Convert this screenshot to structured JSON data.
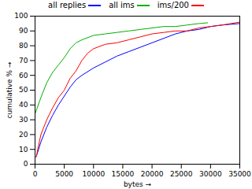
{
  "chart_data": {
    "type": "line",
    "x_label": "bytes",
    "y_label": "cumulative %",
    "xlim": [
      0,
      35000
    ],
    "xticks": [
      0,
      5000,
      10000,
      15000,
      20000,
      25000,
      30000,
      35000
    ],
    "ylim": [
      0,
      100
    ],
    "yticks": [
      0,
      10,
      20,
      30,
      40,
      50,
      60,
      70,
      80,
      90,
      100
    ],
    "grid": false,
    "legend": "top",
    "series": [
      {
        "name": "all replies",
        "color": "#0000ff",
        "x": [
          200,
          1000,
          2000,
          3000,
          4000,
          5000,
          6000,
          7000,
          8000,
          10000,
          12000,
          14000,
          16000,
          18000,
          20000,
          22000,
          24000,
          26000,
          28000,
          30000,
          32000,
          35000
        ],
        "values": [
          5,
          15,
          25,
          33,
          40,
          46,
          52,
          57,
          60,
          65,
          69,
          73,
          76,
          79,
          82,
          85,
          88,
          90,
          91,
          93,
          94,
          95
        ]
      },
      {
        "name": "all ims",
        "color": "#00b000",
        "x": [
          0,
          1000,
          2000,
          3000,
          4000,
          5000,
          6000,
          7000,
          8000,
          10000,
          12000,
          14000,
          16000,
          18000,
          20000,
          22000,
          24000,
          26000,
          28000,
          29500
        ],
        "values": [
          34,
          45,
          55,
          62,
          67,
          72,
          78,
          82,
          84,
          87,
          88,
          89,
          90,
          91,
          92,
          93,
          93,
          94,
          95,
          95.5
        ]
      },
      {
        "name": "ims/200",
        "color": "#ff0000",
        "x": [
          200,
          1000,
          2000,
          3000,
          4000,
          5000,
          6000,
          7000,
          8000,
          9000,
          10000,
          12000,
          14000,
          16000,
          18000,
          20000,
          22000,
          24000,
          26000,
          28000,
          30000,
          32000,
          35000
        ],
        "values": [
          5,
          20,
          30,
          38,
          45,
          50,
          58,
          63,
          70,
          75,
          78,
          81,
          82,
          84,
          86,
          88,
          89,
          90,
          90,
          92,
          93,
          94,
          96
        ]
      }
    ]
  }
}
